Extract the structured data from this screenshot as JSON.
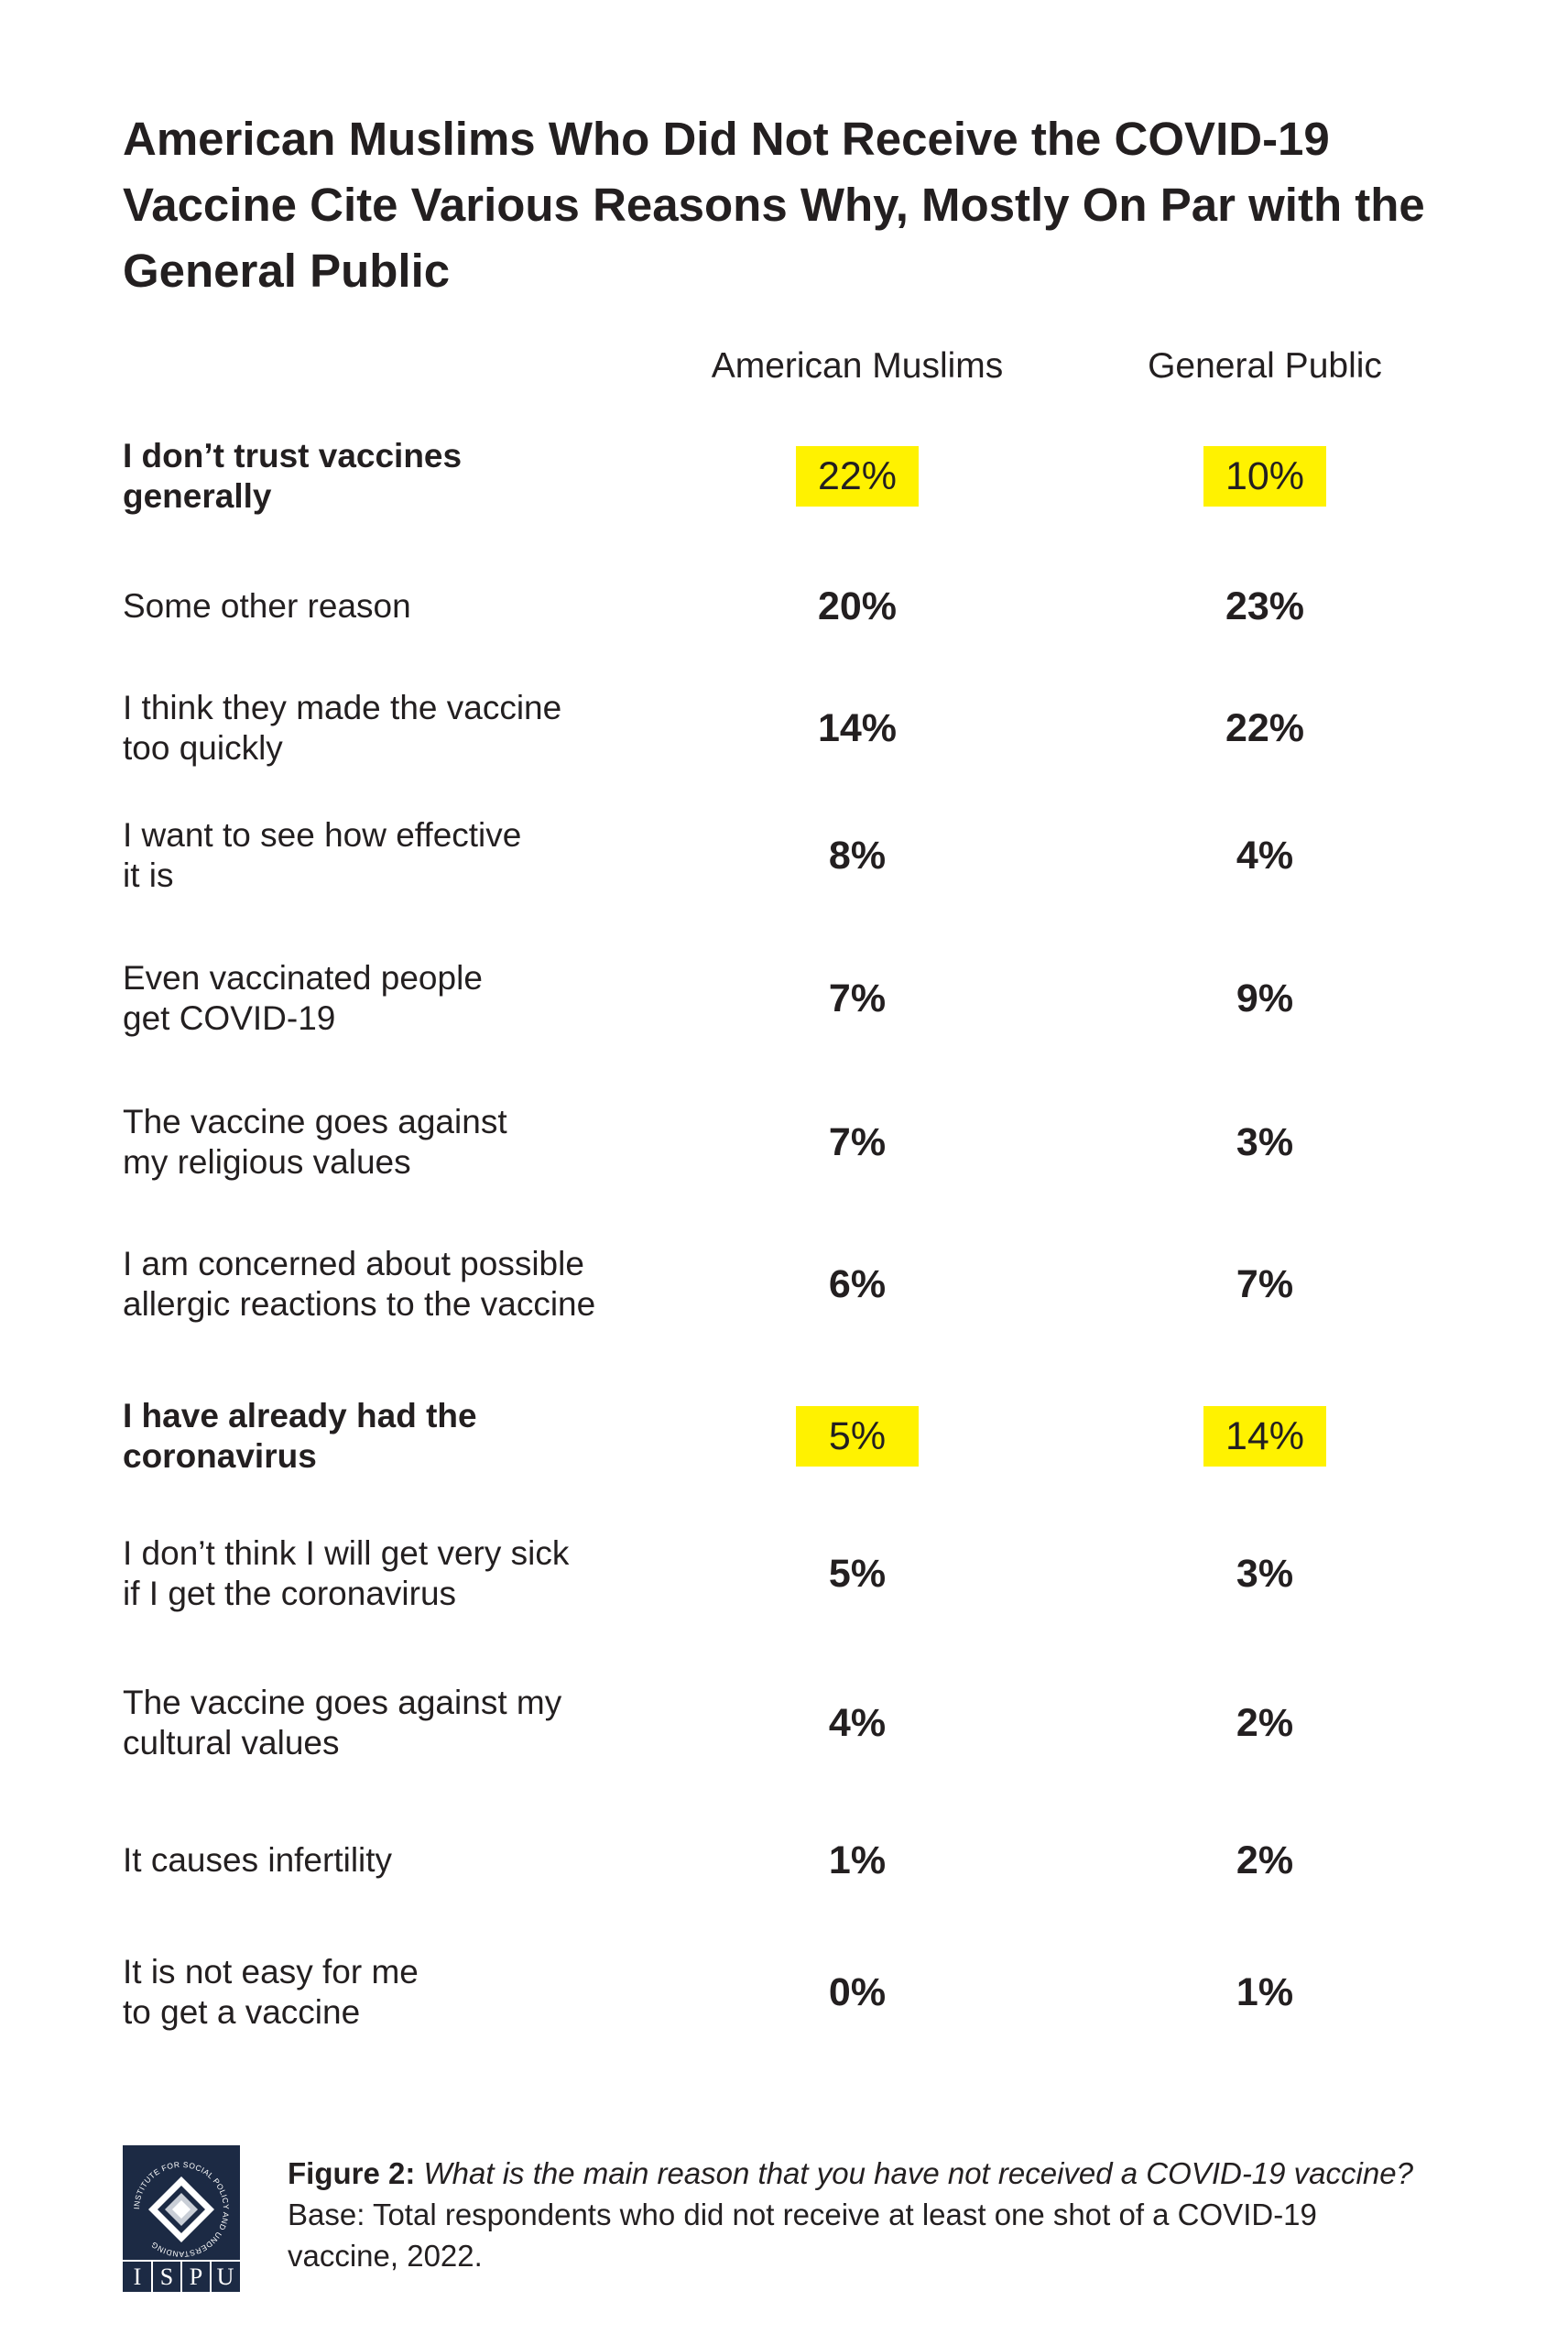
{
  "header": {
    "title": "American Muslims Who Did Not Receive the COVID-19 Vaccine Cite Various Reasons Why, Mostly On Par with the General Public"
  },
  "table": {
    "columns": [
      "American Muslims",
      "General Public"
    ],
    "rows": [
      {
        "label": [
          "I don’t trust vaccines",
          "generally"
        ],
        "values": [
          "22%",
          "10%"
        ],
        "highlight": true
      },
      {
        "label": [
          "Some other reason"
        ],
        "values": [
          "20%",
          "23%"
        ],
        "highlight": false
      },
      {
        "label": [
          "I think they made the vaccine",
          "too quickly"
        ],
        "values": [
          "14%",
          "22%"
        ],
        "highlight": false
      },
      {
        "label": [
          "I want to see how effective",
          "it is"
        ],
        "values": [
          "8%",
          "4%"
        ],
        "highlight": false
      },
      {
        "label": [
          "Even vaccinated people",
          "get COVID-19"
        ],
        "values": [
          "7%",
          "9%"
        ],
        "highlight": false
      },
      {
        "label": [
          "The vaccine goes against",
          "my religious values"
        ],
        "values": [
          "7%",
          "3%"
        ],
        "highlight": false
      },
      {
        "label": [
          "I am concerned about possible",
          "allergic reactions to the vaccine"
        ],
        "values": [
          "6%",
          "7%"
        ],
        "highlight": false
      },
      {
        "label": [
          "I have already had the",
          "coronavirus"
        ],
        "values": [
          "5%",
          "14%"
        ],
        "highlight": true
      },
      {
        "label": [
          "I don’t think I will get very sick",
          "if I get the coronavirus"
        ],
        "values": [
          "5%",
          "3%"
        ],
        "highlight": false
      },
      {
        "label": [
          "The vaccine goes against my",
          "cultural values"
        ],
        "values": [
          "4%",
          "2%"
        ],
        "highlight": false
      },
      {
        "label": [
          "It causes infertility"
        ],
        "values": [
          "1%",
          "2%"
        ],
        "highlight": false
      },
      {
        "label": [
          "It is not easy for me",
          "to get a vaccine"
        ],
        "values": [
          "0%",
          "1%"
        ],
        "highlight": false
      }
    ]
  },
  "footer": {
    "logo": {
      "ring_text": "INSTITUTE FOR SOCIAL POLICY AND UNDERSTANDING",
      "letters": [
        "I",
        "S",
        "P",
        "U"
      ]
    },
    "caption_label": "Figure 2:",
    "caption_question": "What is the main reason that you have not received a COVID-19 vaccine?",
    "caption_base": "Base: Total respondents who did not receive at least one shot of a COVID-19 vaccine, 2022."
  }
}
